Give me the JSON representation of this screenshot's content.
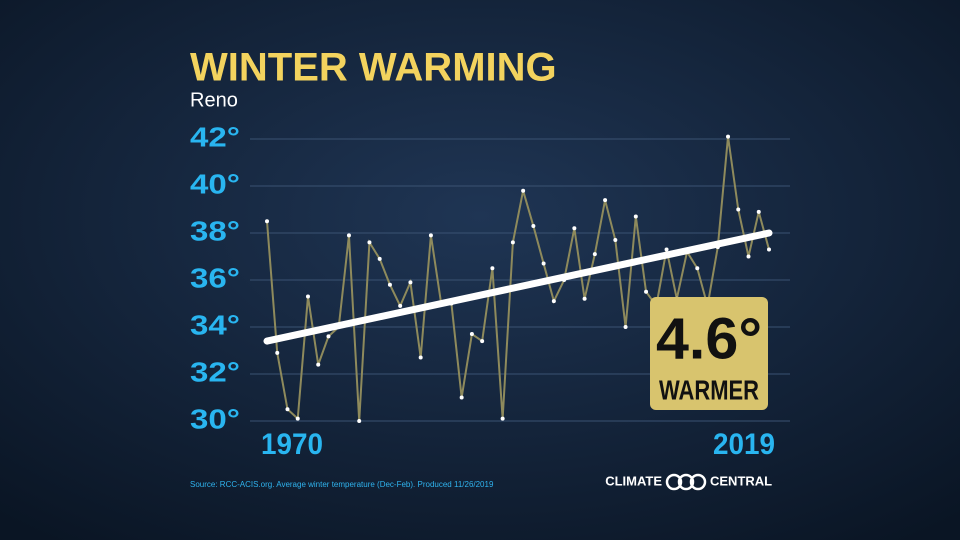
{
  "chart_data": {
    "type": "line",
    "title": "WINTER WARMING",
    "subtitle": "Reno",
    "x": [
      1970,
      1971,
      1972,
      1973,
      1974,
      1975,
      1976,
      1977,
      1978,
      1979,
      1980,
      1981,
      1982,
      1983,
      1984,
      1985,
      1986,
      1987,
      1988,
      1989,
      1990,
      1991,
      1992,
      1993,
      1994,
      1995,
      1996,
      1997,
      1998,
      1999,
      2000,
      2001,
      2002,
      2003,
      2004,
      2005,
      2006,
      2007,
      2008,
      2009,
      2010,
      2011,
      2012,
      2013,
      2014,
      2015,
      2016,
      2017,
      2018,
      2019
    ],
    "series": [
      {
        "name": "Average winter temperature",
        "color": "#8e8a5c",
        "values": [
          38.5,
          32.9,
          30.5,
          30.1,
          35.3,
          32.4,
          33.6,
          34.0,
          37.9,
          30.0,
          37.6,
          36.9,
          35.8,
          34.9,
          35.9,
          32.7,
          37.9,
          35.0,
          35.0,
          31.0,
          33.7,
          33.4,
          36.5,
          30.1,
          37.6,
          39.8,
          38.3,
          36.7,
          35.1,
          36.0,
          38.2,
          35.2,
          37.1,
          39.4,
          37.7,
          34.0,
          38.7,
          35.5,
          34.9,
          37.3,
          35.2,
          37.2,
          36.5,
          34.9,
          37.4,
          42.1,
          39.0,
          37.0,
          38.9,
          37.3
        ]
      },
      {
        "name": "Trend",
        "color": "#ffffff",
        "x": [
          1970,
          2019
        ],
        "values": [
          33.4,
          38.0
        ]
      }
    ],
    "xlim": [
      1970,
      2019
    ],
    "xticks": [
      1970,
      2019
    ],
    "ylim": [
      30,
      42
    ],
    "yticks": [
      {
        "value": 30,
        "label": "30°"
      },
      {
        "value": 32,
        "label": "32°"
      },
      {
        "value": 34,
        "label": "34°"
      },
      {
        "value": 36,
        "label": "36°"
      },
      {
        "value": 38,
        "label": "38°"
      },
      {
        "value": 40,
        "label": "40°"
      },
      {
        "value": 42,
        "label": "42°"
      }
    ],
    "grid": true,
    "annotation": {
      "value": "4.6°",
      "text": "WARMER"
    },
    "source": "Source: RCC-ACIS.org. Average winter temperature (Dec-Feb). Produced 11/26/2019",
    "logo": [
      "CLIMATE",
      "CENTRAL"
    ]
  }
}
